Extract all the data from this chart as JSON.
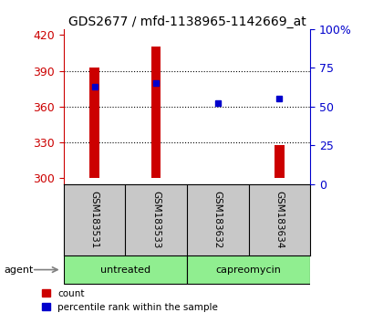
{
  "title": "GDS2677 / mfd-1138965-1142669_at",
  "samples": [
    "GSM183531",
    "GSM183533",
    "GSM183632",
    "GSM183634"
  ],
  "counts": [
    393,
    410,
    300.5,
    328
  ],
  "percentiles": [
    63,
    65,
    52,
    55
  ],
  "ylim_left": [
    295,
    425
  ],
  "ylim_right": [
    0,
    100
  ],
  "yticks_left": [
    300,
    330,
    360,
    390,
    420
  ],
  "yticks_right": [
    0,
    25,
    50,
    75,
    100
  ],
  "ytick_labels_right": [
    "0",
    "25",
    "50",
    "75",
    "100%"
  ],
  "bar_color": "#cc0000",
  "dot_color": "#0000cc",
  "bar_width": 0.15,
  "groups": [
    {
      "label": "untreated",
      "indices": [
        0,
        1
      ],
      "color": "#90ee90"
    },
    {
      "label": "capreomycin",
      "indices": [
        2,
        3
      ],
      "color": "#90ee90"
    }
  ],
  "agent_label": "agent",
  "background_color": "#ffffff",
  "plot_bg_color": "#ffffff",
  "left_axis_color": "#cc0000",
  "right_axis_color": "#0000cc",
  "sample_box_color": "#c8c8c8",
  "legend_count_label": "count",
  "legend_pct_label": "percentile rank within the sample"
}
